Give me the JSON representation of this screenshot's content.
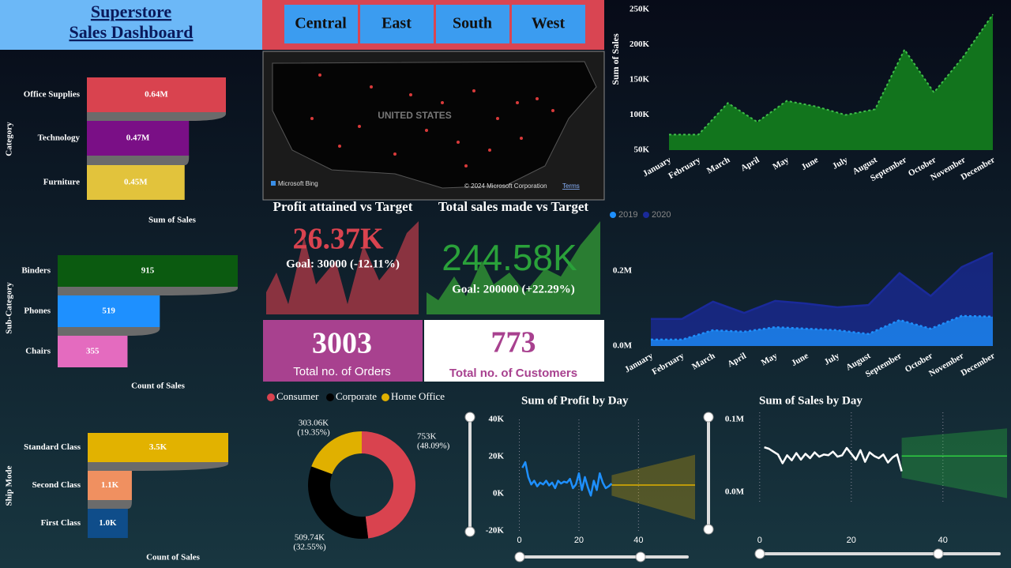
{
  "header": {
    "title": [
      "Superstore",
      "Sales Dashboard"
    ]
  },
  "region_buttons": [
    "Central",
    "East",
    "South",
    "West"
  ],
  "map": {
    "label": "UNITED STATES",
    "attribution": "Microsoft Bing",
    "copyright": "© 2024 Microsoft Corporation",
    "terms": "Terms"
  },
  "kpis": {
    "profit": {
      "title": "Profit attained vs Target",
      "value": "26.37K",
      "goal": "Goal: 30000 (-12.11%)"
    },
    "sales": {
      "title": "Total sales made vs Target",
      "value": "244.58K",
      "goal": "Goal: 200000 (+22.29%)"
    },
    "orders": {
      "value": 3003,
      "label": "Total no. of Orders"
    },
    "customers": {
      "value": 773,
      "label": "Total no. of Customers"
    }
  },
  "chart_data": [
    {
      "type": "funnel",
      "y_label": "Category",
      "x_label": "Sum of Sales",
      "categories": [
        "Office Supplies",
        "Technology",
        "Furniture"
      ],
      "values": [
        640000,
        470000,
        450000
      ],
      "value_labels": [
        "0.64M",
        "0.47M",
        "0.45M"
      ],
      "colors": [
        "#d9434f",
        "#7a0f86",
        "#e2c33c"
      ]
    },
    {
      "type": "funnel",
      "y_label": "Sub-Category",
      "x_label": "Count of Sales",
      "categories": [
        "Binders",
        "Phones",
        "Chairs"
      ],
      "values": [
        915,
        519,
        355
      ],
      "colors": [
        "#0b5a10",
        "#1e90ff",
        "#e46bbf"
      ]
    },
    {
      "type": "funnel",
      "y_label": "Ship Mode",
      "x_label": "Count of Sales",
      "categories": [
        "Standard Class",
        "Second Class",
        "First Class"
      ],
      "values": [
        3500,
        1100,
        1000
      ],
      "value_labels": [
        "3.5K",
        "1.1K",
        "1.0K"
      ],
      "colors": [
        "#e2b200",
        "#f09060",
        "#0f4d8a"
      ]
    },
    {
      "type": "area",
      "y_label": "Sum of Sales",
      "categories": [
        "January",
        "February",
        "March",
        "April",
        "May",
        "June",
        "July",
        "August",
        "September",
        "October",
        "November",
        "December"
      ],
      "values": [
        72000,
        72000,
        117000,
        90000,
        120000,
        112000,
        100000,
        108000,
        193000,
        132000,
        183000,
        243000
      ],
      "color": "#137a1d",
      "ylim": [
        50000,
        250000
      ],
      "yticks": [
        {
          "value": 50000,
          "label": "50K"
        },
        {
          "value": 100000,
          "label": "100K"
        },
        {
          "value": 150000,
          "label": "150K"
        },
        {
          "value": 200000,
          "label": "200K"
        },
        {
          "value": 250000,
          "label": "250K"
        }
      ]
    },
    {
      "type": "area",
      "categories": [
        "January",
        "February",
        "March",
        "April",
        "May",
        "June",
        "July",
        "August",
        "September",
        "October",
        "November",
        "December"
      ],
      "series": [
        {
          "name": "2019",
          "color": "#1e90ff",
          "values": [
            17000,
            17000,
            42000,
            38000,
            50000,
            46000,
            42000,
            32000,
            69000,
            46000,
            80000,
            78000
          ]
        },
        {
          "name": "2020",
          "color": "#1a2a9a",
          "values": [
            72000,
            72000,
            118000,
            88000,
            120000,
            113000,
            103000,
            109000,
            194000,
            133000,
            210000,
            248000
          ]
        }
      ],
      "ylim": [
        0,
        250000
      ],
      "yticks": [
        {
          "value": 0,
          "label": "0.0M"
        },
        {
          "value": 200000,
          "label": "0.2M"
        }
      ]
    },
    {
      "type": "donut",
      "categories": [
        "Consumer",
        "Corporate",
        "Home Office"
      ],
      "values": [
        753000,
        509740,
        303060
      ],
      "value_labels": [
        "753K",
        "509.74K",
        "303.06K"
      ],
      "percents": [
        48.09,
        32.55,
        19.35
      ],
      "percent_labels": [
        "(48.09%)",
        "(32.55%)",
        "(19.35%)"
      ],
      "colors": [
        "#d9434f",
        "#000000",
        "#e0b000"
      ]
    },
    {
      "type": "line",
      "title": "Sum of Profit by Day",
      "x": [
        1,
        2,
        3,
        4,
        5,
        6,
        7,
        8,
        9,
        10,
        11,
        12,
        13,
        14,
        15,
        16,
        17,
        18,
        19,
        20,
        21,
        22,
        23,
        24,
        25,
        26,
        27,
        28,
        29,
        30,
        31
      ],
      "values": [
        14000,
        17000,
        9000,
        5000,
        7000,
        4000,
        6000,
        5000,
        7000,
        4500,
        6000,
        3000,
        7000,
        5500,
        6500,
        6000,
        8000,
        3000,
        5000,
        11000,
        2000,
        9000,
        3500,
        -1000,
        7000,
        2000,
        11000,
        6000,
        3000,
        4000,
        5500
      ],
      "color": "#1e90ff",
      "forecast": {
        "x": [
          31,
          59
        ],
        "values": [
          4700,
          4700
        ],
        "lower": [
          -1000,
          -14000
        ],
        "upper": [
          10000,
          21000
        ],
        "color": "#e0b000"
      },
      "xlim": [
        -2,
        59
      ],
      "ylim": [
        -20000,
        40000
      ],
      "xticks": [
        0,
        20,
        40
      ],
      "yticks": [
        {
          "value": -20000,
          "label": "-20K"
        },
        {
          "value": 0,
          "label": "0K"
        },
        {
          "value": 20000,
          "label": "20K"
        },
        {
          "value": 40000,
          "label": "40K"
        }
      ]
    },
    {
      "type": "line",
      "title": "Sum of Sales by Day",
      "x": [
        1,
        2,
        3,
        4,
        5,
        6,
        7,
        8,
        9,
        10,
        11,
        12,
        13,
        14,
        15,
        16,
        17,
        18,
        19,
        20,
        21,
        22,
        23,
        24,
        25,
        26,
        27,
        28,
        29,
        30,
        31
      ],
      "values": [
        62000,
        60000,
        56000,
        52000,
        40000,
        51000,
        44000,
        54000,
        45000,
        53000,
        47000,
        55000,
        49000,
        52000,
        51000,
        56000,
        49000,
        51000,
        61000,
        53000,
        45000,
        58000,
        42000,
        55000,
        50000,
        47000,
        52000,
        41000,
        48000,
        52000,
        29000
      ],
      "color": "#ffffff",
      "forecast": {
        "x": [
          31,
          54
        ],
        "values": [
          50000,
          50000
        ],
        "lower": [
          20000,
          -8000
        ],
        "upper": [
          75000,
          88000
        ],
        "color": "#2ecc40"
      },
      "xlim": [
        -1,
        54
      ],
      "ylim": [
        -15000,
        110000
      ],
      "xticks": [
        0,
        20,
        40
      ],
      "yticks": [
        {
          "value": 0,
          "label": "0.0M"
        },
        {
          "value": 100000,
          "label": "0.1M"
        }
      ]
    }
  ]
}
